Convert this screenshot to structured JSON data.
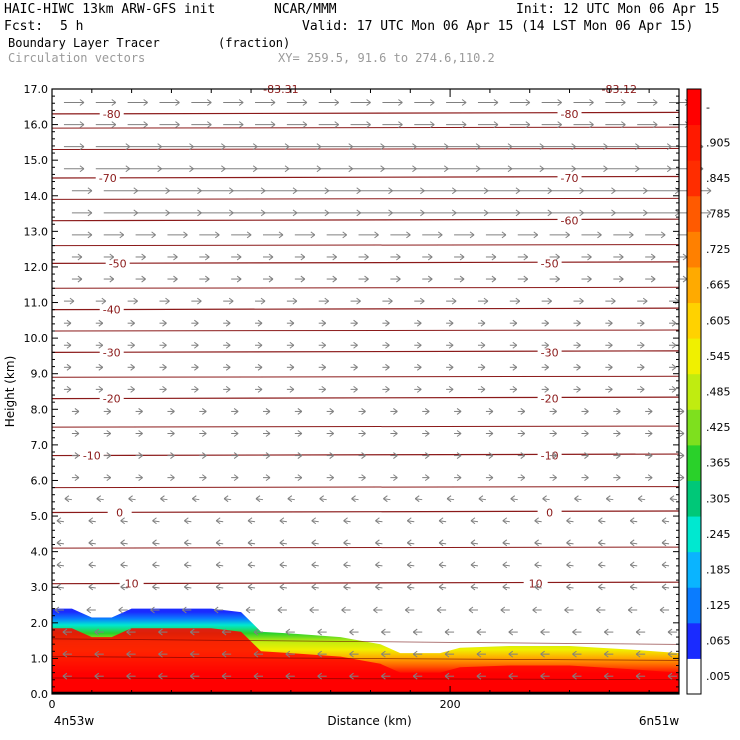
{
  "header": {
    "model": "HAIC-HIWC 13km ARW-GFS init",
    "org": "NCAR/MMM",
    "init": "Init: 12 UTC Mon 06 Apr 15",
    "fcst_label": "Fcst:",
    "fcst_value": "5 h",
    "valid": "Valid: 17 UTC Mon 06 Apr 15 (14 LST Mon 06 Apr 15)",
    "field": "Boundary Layer Tracer",
    "field_units": "(fraction)",
    "vectors": "Circulation vectors",
    "xy": "XY= 259.5, 91.6 to 274.6,110.2"
  },
  "colors": {
    "contour": "#8b1a1a",
    "vector": "#808080",
    "frame": "#000000"
  },
  "chart_data": {
    "type": "heatmap",
    "xlabel": "Distance (km)",
    "ylabel": "Height (km)",
    "xlim": [
      0,
      315
    ],
    "ylim": [
      0,
      17
    ],
    "x_ticks": [
      {
        "value": 0,
        "label": "0"
      },
      {
        "value": 200,
        "label": "200"
      }
    ],
    "x_end_labels": {
      "left": "4n53w",
      "right": "6n51w"
    },
    "y_ticks": [
      0,
      1,
      2,
      3,
      4,
      5,
      6,
      7,
      8,
      9,
      10,
      11,
      12,
      13,
      14,
      15,
      16,
      17
    ],
    "y_tick_labels": [
      "0.0",
      "1.0",
      "2.0",
      "3.0",
      "4.0",
      "5.0",
      "6.0",
      "7.0",
      "8.0",
      "9.0",
      "10.0",
      "11.0",
      "12.0",
      "13.0",
      "14.0",
      "15.0",
      "16.0",
      "17.0"
    ],
    "colorbar": {
      "labels": [
        ".005",
        ".065",
        ".125",
        ".185",
        ".245",
        ".305",
        ".365",
        ".425",
        ".485",
        ".545",
        ".605",
        ".665",
        ".725",
        ".785",
        ".845",
        ".905",
        "-"
      ],
      "colors": [
        "#ffffff",
        "#1a2bff",
        "#0a7cff",
        "#0ab4ff",
        "#00e8d0",
        "#00c878",
        "#2ad12a",
        "#7ee01e",
        "#c0ec10",
        "#f0f000",
        "#ffd200",
        "#ffaa00",
        "#ff8000",
        "#ff5a00",
        "#ff2d00",
        "#ff1a00",
        "#ff0000"
      ]
    },
    "tracer_top_km": [
      [
        0,
        2.4
      ],
      [
        10,
        2.4
      ],
      [
        20,
        2.15
      ],
      [
        30,
        2.15
      ],
      [
        40,
        2.4
      ],
      [
        80,
        2.4
      ],
      [
        95,
        2.3
      ],
      [
        105,
        1.75
      ],
      [
        120,
        1.7
      ],
      [
        145,
        1.6
      ],
      [
        165,
        1.4
      ],
      [
        175,
        1.15
      ],
      [
        195,
        1.15
      ],
      [
        205,
        1.3
      ],
      [
        230,
        1.35
      ],
      [
        260,
        1.35
      ],
      [
        290,
        1.25
      ],
      [
        315,
        1.15
      ]
    ],
    "temperature_contours": [
      {
        "label": "10",
        "y": 3.1,
        "label_x": [
          40,
          243
        ]
      },
      {
        "label": "0",
        "y": 5.1,
        "label_x": [
          34,
          250
        ]
      },
      {
        "label": "-10",
        "y": 6.7,
        "label_x": [
          20,
          250
        ]
      },
      {
        "label": "-20",
        "y": 8.3,
        "label_x": [
          30,
          250
        ]
      },
      {
        "label": "-30",
        "y": 9.6,
        "label_x": [
          30,
          250
        ]
      },
      {
        "label": "-40",
        "y": 10.8,
        "label_x": [
          30,
          null
        ]
      },
      {
        "label": "-50",
        "y": 12.1,
        "label_x": [
          33,
          250
        ]
      },
      {
        "label": "-60",
        "y": 13.3,
        "label_x": [
          null,
          260
        ]
      },
      {
        "label": "-70",
        "y": 14.5,
        "label_x": [
          28,
          260
        ]
      },
      {
        "label": "-80",
        "y": 16.3,
        "label_x": [
          30,
          260
        ]
      }
    ],
    "contour_top_labels": [
      {
        "label": "-83.31",
        "x": 115
      },
      {
        "label": "-83.12",
        "x": 285
      }
    ]
  }
}
